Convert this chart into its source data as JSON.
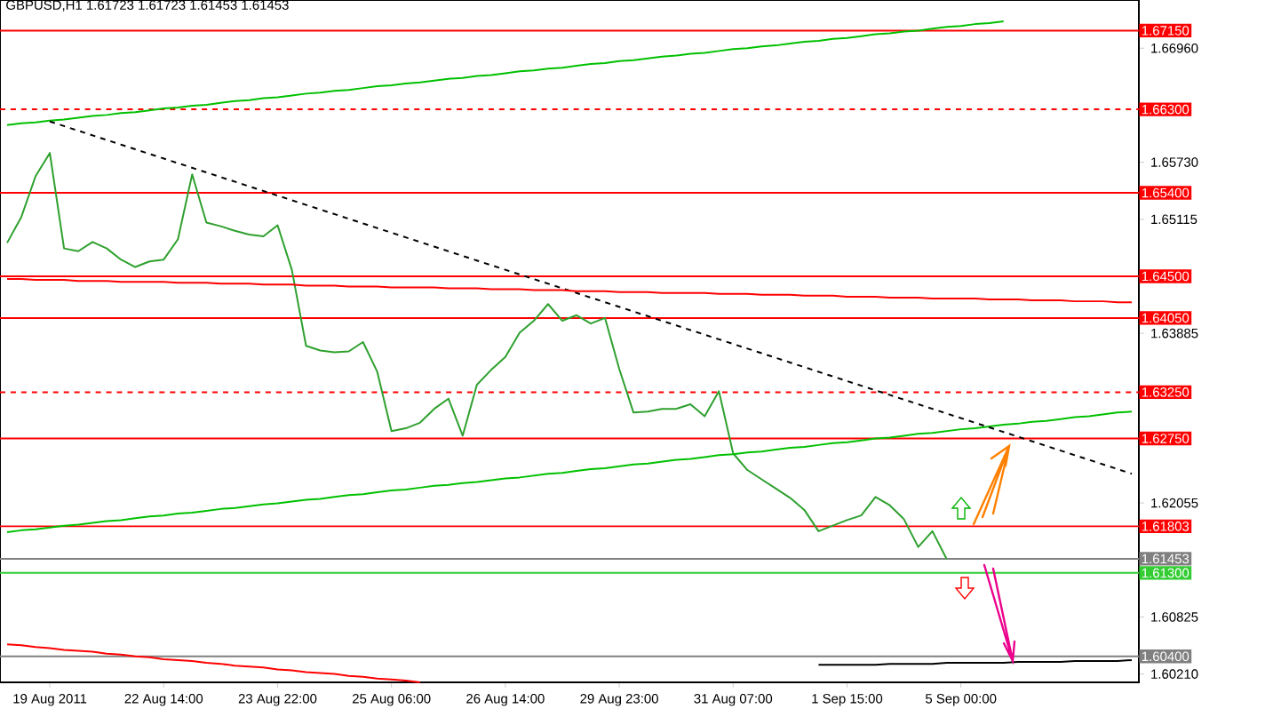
{
  "chart_data": {
    "type": "line",
    "title": "GBPUSD,H1  1.61723 1.61723 1.61453 1.61453",
    "categories": [
      null,
      null,
      null,
      "19 Aug 2011",
      null,
      null,
      null,
      null,
      null,
      null,
      null,
      "22 Aug 14:00",
      null,
      null,
      null,
      null,
      null,
      null,
      null,
      "23 Aug 22:00",
      null,
      null,
      null,
      null,
      null,
      null,
      null,
      "25 Aug 06:00",
      null,
      null,
      null,
      null,
      null,
      null,
      null,
      "26 Aug 14:00",
      null,
      null,
      null,
      null,
      null,
      null,
      null,
      "29 Aug 23:00",
      null,
      null,
      null,
      null,
      null,
      null,
      null,
      "31 Aug 07:00",
      null,
      null,
      null,
      null,
      null,
      null,
      null,
      "1 Sep 15:00",
      null,
      null,
      null,
      null,
      null,
      null,
      null,
      "5 Sep 00:00",
      null,
      null,
      null,
      null,
      null,
      null,
      null,
      null,
      null,
      null,
      null,
      null
    ],
    "ylim": [
      1.6012,
      1.6748
    ],
    "yticks": [
      {
        "value": 1.6021,
        "label": "1.60210"
      },
      {
        "value": 1.60825,
        "label": "1.60825"
      },
      {
        "value": 1.62055,
        "label": "1.62055"
      },
      {
        "value": 1.63885,
        "label": "1.63885"
      },
      {
        "value": 1.65115,
        "label": "1.65115"
      },
      {
        "value": 1.6573,
        "label": "1.65730"
      },
      {
        "value": 1.6696,
        "label": "1.66960"
      }
    ],
    "series": [
      {
        "color": "#2ea02e",
        "values": [
          1.6486,
          1.6514,
          1.6558,
          1.6583,
          1.648,
          1.6477,
          1.6487,
          1.648,
          1.6468,
          1.646,
          1.6466,
          1.6468,
          1.649,
          1.656,
          1.6508,
          1.6504,
          1.6499,
          1.6495,
          1.6493,
          1.6505,
          1.6457,
          1.6375,
          1.637,
          1.6368,
          1.6369,
          1.6379,
          1.6347,
          1.6283,
          1.6286,
          1.6292,
          1.6307,
          1.6318,
          1.6278,
          1.6333,
          1.6349,
          1.6363,
          1.6389,
          1.6402,
          1.642,
          1.6402,
          1.6408,
          1.6399,
          1.6405,
          1.635,
          1.6303,
          1.6304,
          1.6307,
          1.6307,
          1.6312,
          1.6299,
          1.6326,
          1.6259,
          1.6241,
          1.6231,
          1.6221,
          1.6211,
          1.6198,
          1.6175,
          1.6181,
          1.6187,
          1.6192,
          1.6212,
          1.6203,
          1.6188,
          1.6158,
          1.6175,
          1.6145,
          null,
          null,
          null,
          null,
          null,
          null,
          null,
          null,
          null,
          null,
          null,
          null,
          null
        ]
      },
      {
        "color": "#00c000",
        "values": [
          1.6613,
          1.6615,
          1.6616,
          1.6618,
          1.6619,
          1.6621,
          1.6623,
          1.6624,
          1.6626,
          1.6627,
          1.6629,
          1.6631,
          1.6632,
          1.6634,
          1.6635,
          1.6637,
          1.6639,
          1.664,
          1.6642,
          1.6643,
          1.6645,
          1.6647,
          1.6648,
          1.665,
          1.6651,
          1.6653,
          1.6655,
          1.6656,
          1.6658,
          1.6659,
          1.6661,
          1.6663,
          1.6664,
          1.6666,
          1.6667,
          1.6669,
          1.6671,
          1.6672,
          1.6674,
          1.6675,
          1.6677,
          1.6679,
          1.668,
          1.6682,
          1.6683,
          1.6685,
          1.6687,
          1.6688,
          1.669,
          1.6691,
          1.6693,
          1.6695,
          1.6696,
          1.6698,
          1.6699,
          1.6701,
          1.6703,
          1.6704,
          1.6706,
          1.6707,
          1.6709,
          1.6711,
          1.6712,
          1.6714,
          1.6715,
          1.6717,
          1.6719,
          1.672,
          1.6722,
          1.6723,
          1.6725,
          null,
          null,
          null,
          null,
          null,
          null,
          null,
          null,
          null
        ]
      },
      {
        "color": "#00c000",
        "values": [
          1.6174,
          1.6176,
          1.6177,
          1.6179,
          1.6181,
          1.6182,
          1.6184,
          1.6186,
          1.6187,
          1.6189,
          1.6191,
          1.6192,
          1.6194,
          1.6195,
          1.6197,
          1.6199,
          1.62,
          1.6202,
          1.6204,
          1.6205,
          1.6207,
          1.6209,
          1.621,
          1.6212,
          1.6214,
          1.6215,
          1.6217,
          1.6219,
          1.622,
          1.6222,
          1.6224,
          1.6225,
          1.6227,
          1.6228,
          1.623,
          1.6232,
          1.6233,
          1.6235,
          1.6237,
          1.6238,
          1.624,
          1.6242,
          1.6243,
          1.6245,
          1.6247,
          1.6248,
          1.625,
          1.6252,
          1.6253,
          1.6255,
          1.6257,
          1.6258,
          1.626,
          1.6261,
          1.6263,
          1.6265,
          1.6266,
          1.6268,
          1.627,
          1.6271,
          1.6273,
          1.6275,
          1.6276,
          1.6278,
          1.628,
          1.6281,
          1.6283,
          1.6285,
          1.6286,
          1.6288,
          1.629,
          1.6291,
          1.6293,
          1.6294,
          1.6296,
          1.6298,
          1.6299,
          1.6301,
          1.6303,
          1.6304
        ]
      },
      {
        "color": "#000000",
        "line_style": "dashed",
        "values": [
          null,
          null,
          null,
          1.6617,
          1.6612,
          1.6607,
          1.6602,
          1.6597,
          1.6592,
          1.6587,
          1.6582,
          1.6577,
          1.6572,
          1.6567,
          1.6562,
          1.6557,
          1.6552,
          1.6547,
          1.6542,
          1.6537,
          1.6532,
          1.6527,
          1.6522,
          1.6517,
          1.6512,
          1.6507,
          1.6502,
          1.6497,
          1.6492,
          1.6487,
          1.6482,
          1.6477,
          1.6472,
          1.6467,
          1.6462,
          1.6457,
          1.6452,
          1.6447,
          1.6442,
          1.6437,
          1.6432,
          1.6427,
          1.6422,
          1.6417,
          1.6412,
          1.6407,
          1.6402,
          1.6397,
          1.6392,
          1.6387,
          1.6382,
          1.6377,
          1.6372,
          1.6367,
          1.6362,
          1.6357,
          1.6352,
          1.6347,
          1.6342,
          1.6337,
          1.6332,
          1.6327,
          1.6322,
          1.6317,
          1.6312,
          1.6307,
          1.6302,
          1.6297,
          1.6292,
          1.6287,
          1.6282,
          1.6277,
          1.6272,
          1.6267,
          1.6262,
          1.6257,
          1.6252,
          1.6247,
          1.6242,
          1.6237
        ]
      },
      {
        "color": "#ff0000",
        "values": [
          1.6447,
          1.6447,
          1.6446,
          1.6446,
          1.6446,
          1.6445,
          1.6445,
          1.6445,
          1.6444,
          1.6444,
          1.6444,
          1.6444,
          1.6443,
          1.6443,
          1.6443,
          1.6442,
          1.6442,
          1.6442,
          1.6441,
          1.6441,
          1.6441,
          1.644,
          1.644,
          1.644,
          1.6439,
          1.6439,
          1.6439,
          1.6438,
          1.6438,
          1.6438,
          1.6438,
          1.6437,
          1.6437,
          1.6437,
          1.6436,
          1.6436,
          1.6436,
          1.6435,
          1.6435,
          1.6435,
          1.6434,
          1.6434,
          1.6434,
          1.6433,
          1.6433,
          1.6433,
          1.6432,
          1.6432,
          1.6432,
          1.6432,
          1.6431,
          1.6431,
          1.6431,
          1.643,
          1.643,
          1.643,
          1.6429,
          1.6429,
          1.6429,
          1.6428,
          1.6428,
          1.6428,
          1.6427,
          1.6427,
          1.6427,
          1.6426,
          1.6426,
          1.6426,
          1.6426,
          1.6425,
          1.6425,
          1.6425,
          1.6424,
          1.6424,
          1.6424,
          1.6423,
          1.6423,
          1.6423,
          1.6422,
          1.6422
        ]
      },
      {
        "color": "#ff0000",
        "values": [
          1.6053,
          1.6052,
          1.605,
          1.6049,
          1.6047,
          1.6046,
          1.6045,
          1.6043,
          1.6042,
          1.604,
          1.6039,
          1.6037,
          1.6036,
          1.6035,
          1.6033,
          1.6032,
          1.603,
          1.6029,
          1.6028,
          1.6026,
          1.6025,
          1.6023,
          1.6022,
          1.6021,
          1.6019,
          1.6018,
          1.6016,
          1.6015,
          1.6014,
          1.6012,
          null,
          null,
          null,
          null,
          null,
          null,
          null,
          null,
          null,
          null,
          null,
          null,
          null,
          null,
          null,
          null,
          null,
          null,
          null,
          null,
          null,
          null,
          null,
          null,
          null,
          null,
          null,
          null,
          null,
          null,
          null,
          null,
          null,
          null,
          null,
          null,
          null,
          null,
          null,
          null,
          null,
          null,
          null,
          null,
          null,
          null,
          null,
          null,
          null,
          null
        ]
      },
      {
        "color": "#000000",
        "values": [
          null,
          null,
          null,
          null,
          null,
          null,
          null,
          null,
          null,
          null,
          null,
          null,
          null,
          null,
          null,
          null,
          null,
          null,
          null,
          null,
          null,
          null,
          null,
          null,
          null,
          null,
          null,
          null,
          null,
          null,
          null,
          null,
          null,
          null,
          null,
          null,
          null,
          null,
          null,
          null,
          null,
          null,
          null,
          null,
          null,
          null,
          null,
          null,
          null,
          null,
          null,
          null,
          null,
          null,
          null,
          null,
          null,
          1.6031,
          1.6031,
          1.6031,
          1.6031,
          1.6031,
          1.6032,
          1.6032,
          1.6032,
          1.6032,
          1.6033,
          1.6033,
          1.6033,
          1.6033,
          1.6033,
          1.6034,
          1.6034,
          1.6034,
          1.6034,
          1.6035,
          1.6035,
          1.6035,
          1.6035,
          1.6036
        ]
      }
    ],
    "ref_lines": [
      {
        "axis": "y",
        "value": 1.6715,
        "label": "1.67150",
        "color": "#ff0000"
      },
      {
        "axis": "y",
        "value": 1.663,
        "label": "1.66300",
        "color": "#ff0000",
        "line_style": "dashed"
      },
      {
        "axis": "y",
        "value": 1.654,
        "label": "1.65400",
        "color": "#ff0000"
      },
      {
        "axis": "y",
        "value": 1.645,
        "label": "1.64500",
        "color": "#ff0000"
      },
      {
        "axis": "y",
        "value": 1.6405,
        "label": "1.64050",
        "color": "#ff0000"
      },
      {
        "axis": "y",
        "value": 1.6325,
        "label": "1.63250",
        "color": "#ff0000",
        "line_style": "dashed"
      },
      {
        "axis": "y",
        "value": 1.6275,
        "label": "1.62750",
        "color": "#ff0000"
      },
      {
        "axis": "y",
        "value": 1.61803,
        "label": "1.61803",
        "color": "#ff0000"
      },
      {
        "axis": "y",
        "value": 1.61453,
        "label": "1.61453",
        "color": "#808080"
      },
      {
        "axis": "y",
        "value": 1.613,
        "label": "1.61300",
        "color": "#33cc33"
      },
      {
        "axis": "y",
        "value": 1.604,
        "label": "1.60400",
        "color": "#808080"
      }
    ]
  }
}
